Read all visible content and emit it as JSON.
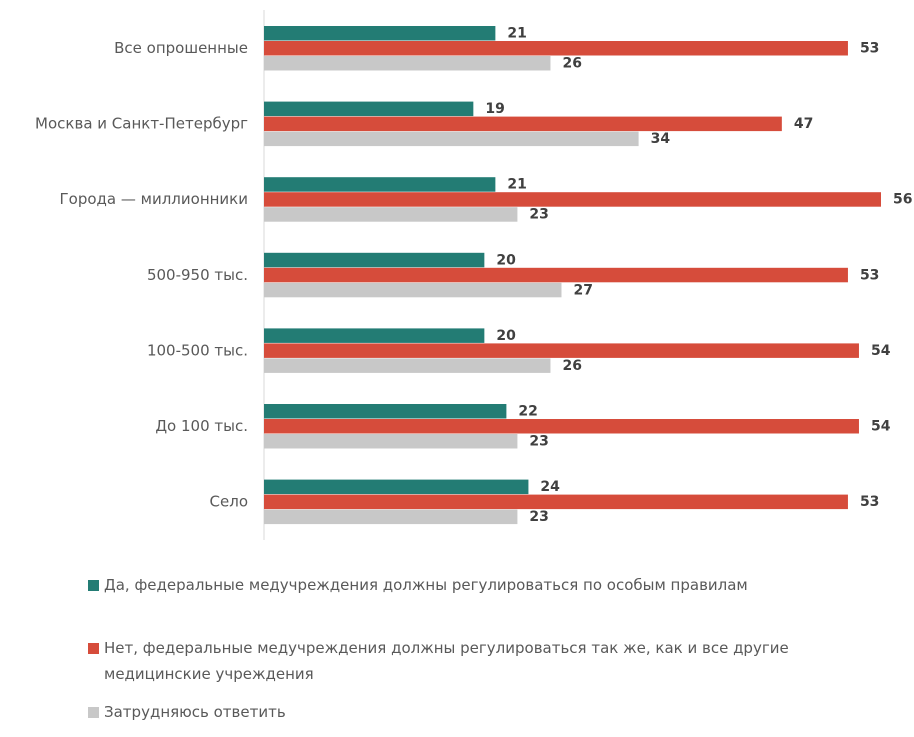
{
  "chart_data": {
    "type": "hbar",
    "categories": [
      "Все опрошенные",
      "Москва и Санкт-Петербург",
      "Города — миллионники",
      "500-950 тыс.",
      "100-500 тыс.",
      "До 100 тыс.",
      "Село"
    ],
    "series": [
      {
        "name": "Да, федеральные медучреждения должны регулироваться по особым правилам",
        "color": "#237c74",
        "values": [
          21,
          19,
          21,
          20,
          20,
          22,
          24
        ]
      },
      {
        "name": "Нет, федеральные медучреждения должны регулироваться так же, как и все другие медицинские учреждения",
        "color": "#d64c3b",
        "values": [
          53,
          47,
          56,
          53,
          54,
          54,
          53
        ]
      },
      {
        "name": "Затрудняюсь ответить",
        "color": "#c8c8c8",
        "values": [
          26,
          34,
          23,
          27,
          26,
          23,
          23
        ]
      }
    ],
    "xlim": [
      0,
      56
    ]
  }
}
